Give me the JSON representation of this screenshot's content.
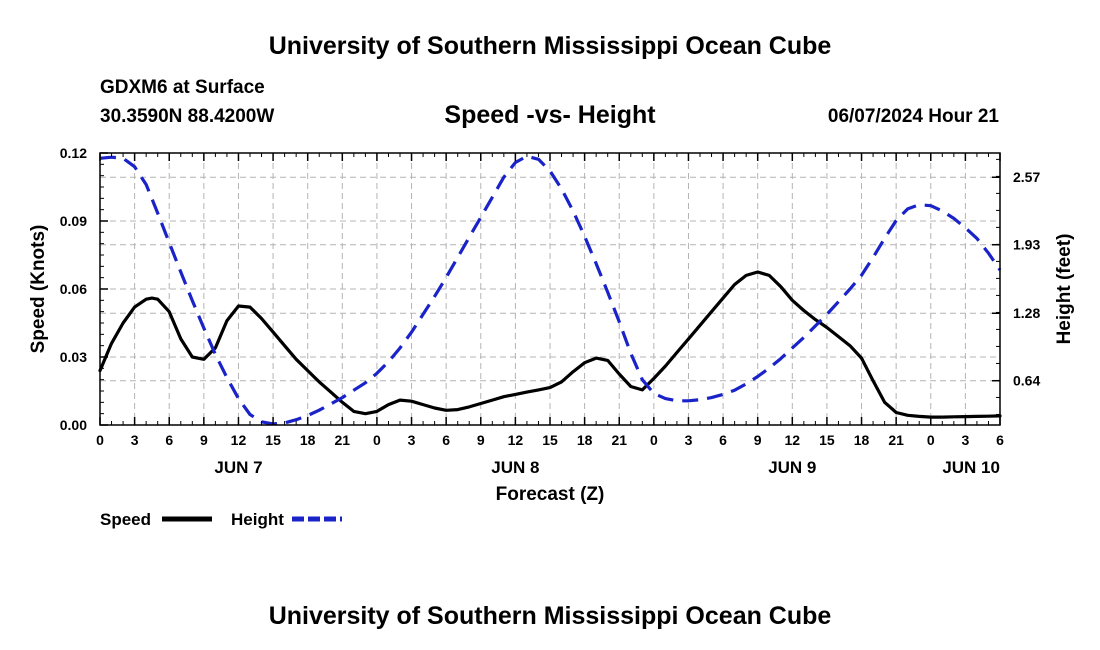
{
  "page": {
    "title_top": "University of Southern Mississippi Ocean Cube",
    "title_bottom": "University of Southern Mississippi Ocean Cube",
    "station": "GDXM6 at Surface",
    "coords": "30.3590N  88.4200W",
    "datetime": "06/07/2024 Hour 21"
  },
  "chart_data": {
    "type": "line",
    "title": "Speed -vs- Height",
    "xlabel": "Forecast (Z)",
    "ylabel": "Speed (Knots)",
    "y2label": "Height (feet)",
    "x_unit": "hours from JUN 7 00Z",
    "xlim": [
      0,
      78
    ],
    "ylim": [
      0,
      0.12
    ],
    "y2lim": [
      0.22,
      2.8
    ],
    "x_ticks": [
      0,
      3,
      6,
      9,
      12,
      15,
      18,
      21,
      24,
      27,
      30,
      33,
      36,
      39,
      42,
      45,
      48,
      51,
      54,
      57,
      60,
      63,
      66,
      69,
      72,
      75,
      78
    ],
    "x_tick_labels": [
      "0",
      "3",
      "6",
      "9",
      "12",
      "15",
      "18",
      "21",
      "0",
      "3",
      "6",
      "9",
      "12",
      "15",
      "18",
      "21",
      "0",
      "3",
      "6",
      "9",
      "12",
      "15",
      "18",
      "21",
      "0",
      "3",
      "6"
    ],
    "day_labels": [
      {
        "x": 12,
        "label": "JUN 7"
      },
      {
        "x": 36,
        "label": "JUN 8"
      },
      {
        "x": 60,
        "label": "JUN 9"
      },
      {
        "x": 75.5,
        "label": "JUN 10"
      }
    ],
    "y_ticks": [
      0,
      0.03,
      0.06,
      0.09,
      0.12
    ],
    "y_tick_labels": [
      "0.00",
      "0.03",
      "0.06",
      "0.09",
      "0.12"
    ],
    "y2_ticks": [
      0.64,
      1.28,
      1.93,
      2.57
    ],
    "y2_tick_labels": [
      "0.64",
      "1.28",
      "1.93",
      "2.57"
    ],
    "series": [
      {
        "name": "Speed",
        "axis": "left",
        "color": "#000000",
        "style": "solid",
        "x": [
          0,
          1,
          2,
          3,
          4,
          4.5,
          5,
          6,
          7,
          8,
          9,
          10,
          11,
          12,
          13,
          14,
          15,
          16,
          17,
          18,
          19,
          20,
          21,
          22,
          23,
          24,
          25,
          26,
          27,
          28,
          29,
          30,
          31,
          32,
          33,
          34,
          35,
          36,
          37,
          38,
          39,
          40,
          41,
          42,
          43,
          44,
          45,
          46,
          47,
          48,
          49,
          50,
          51,
          52,
          53,
          54,
          55,
          56,
          57,
          58,
          59,
          60,
          61,
          62,
          63,
          64,
          65,
          66,
          67,
          68,
          69,
          70,
          71,
          72,
          73,
          74,
          75,
          76,
          77,
          78
        ],
        "values": [
          0.024,
          0.036,
          0.045,
          0.052,
          0.0555,
          0.056,
          0.0555,
          0.05,
          0.038,
          0.03,
          0.029,
          0.034,
          0.046,
          0.0525,
          0.052,
          0.047,
          0.041,
          0.035,
          0.029,
          0.024,
          0.019,
          0.0145,
          0.01,
          0.006,
          0.005,
          0.006,
          0.009,
          0.011,
          0.0105,
          0.009,
          0.0075,
          0.0065,
          0.0068,
          0.008,
          0.0095,
          0.011,
          0.0125,
          0.0135,
          0.0145,
          0.0155,
          0.0165,
          0.019,
          0.0235,
          0.0275,
          0.0295,
          0.0285,
          0.0225,
          0.017,
          0.0155,
          0.0205,
          0.026,
          0.032,
          0.038,
          0.044,
          0.05,
          0.056,
          0.062,
          0.066,
          0.0675,
          0.066,
          0.061,
          0.055,
          0.0505,
          0.0465,
          0.043,
          0.039,
          0.035,
          0.0295,
          0.0195,
          0.01,
          0.0055,
          0.0043,
          0.0038,
          0.0035,
          0.0035,
          0.0036,
          0.0037,
          0.0038,
          0.0039,
          0.004
        ]
      },
      {
        "name": "Height",
        "axis": "right",
        "color": "#1a23c8",
        "style": "dashed",
        "x": [
          0,
          1,
          2,
          3,
          4,
          5,
          6,
          7,
          8,
          9,
          10,
          11,
          12,
          13,
          14,
          15,
          16,
          17,
          18,
          19,
          20,
          21,
          22,
          23,
          24,
          25,
          26,
          27,
          28,
          29,
          30,
          31,
          32,
          33,
          34,
          35,
          36,
          37,
          38,
          39,
          40,
          41,
          42,
          43,
          44,
          45,
          46,
          47,
          48,
          49,
          50,
          51,
          52,
          53,
          54,
          55,
          56,
          57,
          58,
          59,
          60,
          61,
          62,
          63,
          64,
          65,
          66,
          67,
          68,
          69,
          70,
          71,
          72,
          73,
          74,
          75,
          76,
          77,
          78
        ],
        "values": [
          2.75,
          2.76,
          2.75,
          2.67,
          2.5,
          2.23,
          1.95,
          1.67,
          1.4,
          1.14,
          0.89,
          0.67,
          0.47,
          0.32,
          0.25,
          0.23,
          0.24,
          0.27,
          0.31,
          0.36,
          0.42,
          0.48,
          0.55,
          0.62,
          0.71,
          0.82,
          0.95,
          1.1,
          1.27,
          1.44,
          1.62,
          1.81,
          2.0,
          2.19,
          2.38,
          2.57,
          2.71,
          2.77,
          2.74,
          2.63,
          2.46,
          2.25,
          2.01,
          1.75,
          1.48,
          1.2,
          0.9,
          0.65,
          0.52,
          0.47,
          0.45,
          0.45,
          0.46,
          0.48,
          0.51,
          0.55,
          0.61,
          0.68,
          0.76,
          0.85,
          0.95,
          1.05,
          1.16,
          1.27,
          1.39,
          1.51,
          1.64,
          1.81,
          1.99,
          2.16,
          2.27,
          2.31,
          2.3,
          2.25,
          2.18,
          2.09,
          1.99,
          1.85,
          1.69
        ]
      }
    ],
    "legend": [
      {
        "label": "Speed",
        "color": "#000000",
        "style": "solid"
      },
      {
        "label": "Height",
        "color": "#1a23c8",
        "style": "dashed"
      }
    ],
    "grid": true,
    "legend_position": "bottom-left"
  }
}
